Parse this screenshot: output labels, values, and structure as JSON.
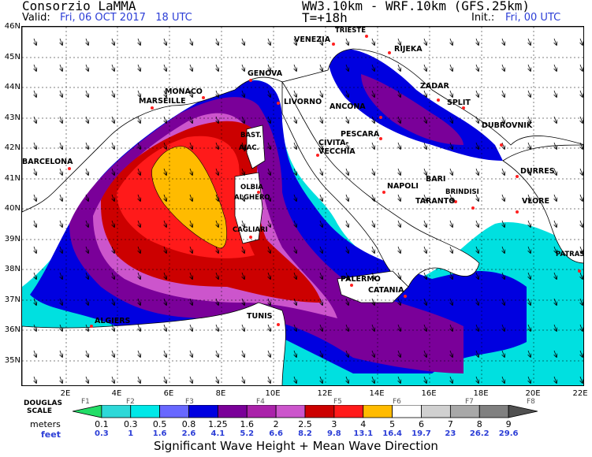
{
  "header": {
    "producer": "Consorzio LaMMA",
    "model": "WW3.10km - WRF.10km (GFS.25km)",
    "valid_label": "Valid:",
    "valid_value": "Fri, 06 OCT 2017   18 UTC",
    "forecast_step": "T=+18h",
    "init_label": "Init.:",
    "init_value": "Fri, 00 UTC"
  },
  "map": {
    "lat_labels": [
      "46N",
      "45N",
      "44N",
      "43N",
      "42N",
      "41N",
      "40N",
      "39N",
      "38N",
      "37N",
      "36N",
      "35N"
    ],
    "lon_labels": [
      "2E",
      "4E",
      "6E",
      "8E",
      "10E",
      "12E",
      "14E",
      "16E",
      "18E",
      "20E",
      "22E"
    ],
    "cities": [
      "TRIESTE",
      "VENEZIA",
      "RIJEKA",
      "MONACO",
      "GENOVA",
      "ZADAR",
      "MARSEILLE",
      "LIVORNO",
      "ANCONA",
      "SPLIT",
      "DUBROVNIK",
      "BAST.",
      "PESCARA",
      "AJAC.",
      "CIVITA-",
      "VECCHIA",
      "BARCELONA",
      "DURRES",
      "OLBIA",
      "BARI",
      "NAPOLI",
      "BRINDISI",
      "ALGHERO",
      "TARANTO",
      "VLORE",
      "CAGLIARI",
      "PATRAS",
      "PALERMO",
      "CATANIA",
      "ALGIERS",
      "TUNIS"
    ],
    "colors": {
      "land": "#ffffff",
      "border": "#000000",
      "city_dot": "#ff2020"
    }
  },
  "legend": {
    "douglas_label": "DOUGLAS\nSCALE",
    "meters_label": "meters",
    "feet_label": "feet",
    "douglas_classes": [
      "F1",
      "F2",
      "F3",
      "F4",
      "F5",
      "F6",
      "F7",
      "F8"
    ],
    "meters": [
      "0.1",
      "0.3",
      "0.5",
      "0.8",
      "1.25",
      "1.6",
      "2",
      "2.5",
      "3",
      "4",
      "5",
      "6",
      "7",
      "8",
      "9"
    ],
    "feet": [
      "0.3",
      "1",
      "1.6",
      "2.6",
      "4.1",
      "5.2",
      "6.6",
      "8.2",
      "9.8",
      "13.1",
      "16.4",
      "19.7",
      "23",
      "26.2",
      "29.6"
    ],
    "colors": [
      "#22dd66",
      "#2ed8d8",
      "#00e8e8",
      "#6868ff",
      "#0000e0",
      "#7a0099",
      "#aa22aa",
      "#cc55cc",
      "#cc0000",
      "#ff1a1a",
      "#ffbb00",
      "#ffffff",
      "#d0d0d0",
      "#a8a8a8",
      "#808080",
      "#505050"
    ]
  },
  "title": "Significant Wave Height + Mean Wave Direction"
}
